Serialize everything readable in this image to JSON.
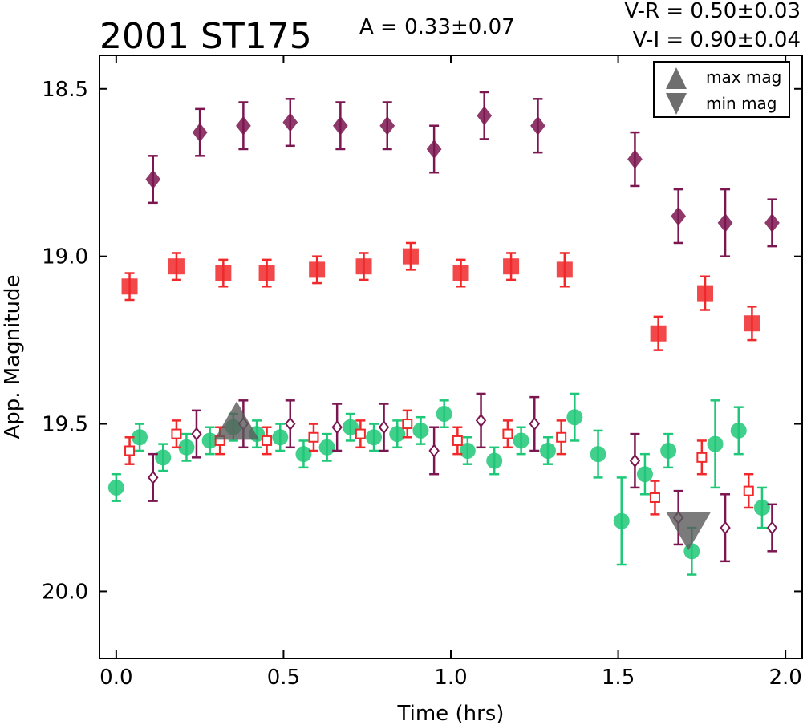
{
  "header": {
    "title": "2001 ST175",
    "amplitude": "A  = 0.33±0.07",
    "color_vr": "V-R = 0.50±0.03",
    "color_vi": "V-I  = 0.90±0.04"
  },
  "chart_data": {
    "type": "scatter",
    "title": "2001 ST175",
    "xlabel": "Time (hrs)",
    "ylabel": "App. Magnitude",
    "xlim": [
      -0.05,
      2.05
    ],
    "ylim": [
      20.2,
      18.4
    ],
    "y_inverted": true,
    "grid": false,
    "xticks": [
      0.0,
      0.5,
      1.0,
      1.5,
      2.0
    ],
    "xtick_labels": [
      "0.0",
      "0.5",
      "1.0",
      "1.5",
      "2.0"
    ],
    "yticks": [
      18.5,
      19.0,
      19.5,
      20.0
    ],
    "ytick_labels": [
      "18.5",
      "19.0",
      "19.5",
      "20.0"
    ],
    "legend": {
      "position": "top-right",
      "entries": [
        {
          "label": "max mag",
          "marker": "triangle-up"
        },
        {
          "label": "min mag",
          "marker": "triangle-down"
        }
      ]
    },
    "series": [
      {
        "marker": "diamond-filled",
        "color": "#7b1650",
        "points": [
          {
            "x": 0.11,
            "y": 18.77,
            "err": 0.07
          },
          {
            "x": 0.25,
            "y": 18.63,
            "err": 0.07
          },
          {
            "x": 0.38,
            "y": 18.61,
            "err": 0.07
          },
          {
            "x": 0.52,
            "y": 18.6,
            "err": 0.07
          },
          {
            "x": 0.67,
            "y": 18.61,
            "err": 0.07
          },
          {
            "x": 0.81,
            "y": 18.61,
            "err": 0.07
          },
          {
            "x": 0.95,
            "y": 18.68,
            "err": 0.07
          },
          {
            "x": 1.1,
            "y": 18.58,
            "err": 0.07
          },
          {
            "x": 1.26,
            "y": 18.61,
            "err": 0.08
          },
          {
            "x": 1.55,
            "y": 18.71,
            "err": 0.08
          },
          {
            "x": 1.68,
            "y": 18.88,
            "err": 0.08
          },
          {
            "x": 1.82,
            "y": 18.9,
            "err": 0.1
          },
          {
            "x": 1.96,
            "y": 18.9,
            "err": 0.07
          }
        ]
      },
      {
        "marker": "square-filled",
        "color": "#f0282a",
        "points": [
          {
            "x": 0.04,
            "y": 19.09,
            "err": 0.04
          },
          {
            "x": 0.18,
            "y": 19.03,
            "err": 0.04
          },
          {
            "x": 0.32,
            "y": 19.05,
            "err": 0.04
          },
          {
            "x": 0.45,
            "y": 19.05,
            "err": 0.04
          },
          {
            "x": 0.6,
            "y": 19.04,
            "err": 0.04
          },
          {
            "x": 0.74,
            "y": 19.03,
            "err": 0.04
          },
          {
            "x": 0.88,
            "y": 19.0,
            "err": 0.04
          },
          {
            "x": 1.03,
            "y": 19.05,
            "err": 0.04
          },
          {
            "x": 1.18,
            "y": 19.03,
            "err": 0.04
          },
          {
            "x": 1.34,
            "y": 19.04,
            "err": 0.05
          },
          {
            "x": 1.62,
            "y": 19.23,
            "err": 0.05
          },
          {
            "x": 1.76,
            "y": 19.11,
            "err": 0.05
          },
          {
            "x": 1.9,
            "y": 19.2,
            "err": 0.05
          }
        ]
      },
      {
        "marker": "circle-filled",
        "color": "#1ec878",
        "points": [
          {
            "x": 0.0,
            "y": 19.69,
            "err": 0.04
          },
          {
            "x": 0.07,
            "y": 19.54,
            "err": 0.04
          },
          {
            "x": 0.14,
            "y": 19.6,
            "err": 0.04
          },
          {
            "x": 0.21,
            "y": 19.57,
            "err": 0.04
          },
          {
            "x": 0.28,
            "y": 19.55,
            "err": 0.04
          },
          {
            "x": 0.35,
            "y": 19.51,
            "err": 0.04
          },
          {
            "x": 0.42,
            "y": 19.53,
            "err": 0.04
          },
          {
            "x": 0.49,
            "y": 19.54,
            "err": 0.04
          },
          {
            "x": 0.56,
            "y": 19.59,
            "err": 0.04
          },
          {
            "x": 0.63,
            "y": 19.57,
            "err": 0.04
          },
          {
            "x": 0.7,
            "y": 19.51,
            "err": 0.04
          },
          {
            "x": 0.77,
            "y": 19.54,
            "err": 0.04
          },
          {
            "x": 0.84,
            "y": 19.53,
            "err": 0.04
          },
          {
            "x": 0.91,
            "y": 19.52,
            "err": 0.04
          },
          {
            "x": 0.98,
            "y": 19.47,
            "err": 0.04
          },
          {
            "x": 1.05,
            "y": 19.58,
            "err": 0.04
          },
          {
            "x": 1.13,
            "y": 19.61,
            "err": 0.04
          },
          {
            "x": 1.21,
            "y": 19.55,
            "err": 0.04
          },
          {
            "x": 1.29,
            "y": 19.58,
            "err": 0.04
          },
          {
            "x": 1.37,
            "y": 19.48,
            "err": 0.07
          },
          {
            "x": 1.44,
            "y": 19.59,
            "err": 0.07
          },
          {
            "x": 1.51,
            "y": 19.79,
            "err": 0.13
          },
          {
            "x": 1.58,
            "y": 19.65,
            "err": 0.06
          },
          {
            "x": 1.65,
            "y": 19.58,
            "err": 0.05
          },
          {
            "x": 1.72,
            "y": 19.88,
            "err": 0.07
          },
          {
            "x": 1.79,
            "y": 19.56,
            "err": 0.13
          },
          {
            "x": 1.86,
            "y": 19.52,
            "err": 0.07
          },
          {
            "x": 1.93,
            "y": 19.75,
            "err": 0.06
          }
        ]
      },
      {
        "marker": "square-open",
        "color": "#f0282a",
        "points": [
          {
            "x": 0.04,
            "y": 19.58,
            "err": 0.04
          },
          {
            "x": 0.18,
            "y": 19.53,
            "err": 0.04
          },
          {
            "x": 0.31,
            "y": 19.55,
            "err": 0.04
          },
          {
            "x": 0.45,
            "y": 19.55,
            "err": 0.04
          },
          {
            "x": 0.59,
            "y": 19.54,
            "err": 0.04
          },
          {
            "x": 0.73,
            "y": 19.53,
            "err": 0.04
          },
          {
            "x": 0.87,
            "y": 19.5,
            "err": 0.04
          },
          {
            "x": 1.02,
            "y": 19.55,
            "err": 0.04
          },
          {
            "x": 1.17,
            "y": 19.53,
            "err": 0.04
          },
          {
            "x": 1.33,
            "y": 19.54,
            "err": 0.05
          },
          {
            "x": 1.61,
            "y": 19.72,
            "err": 0.05
          },
          {
            "x": 1.75,
            "y": 19.6,
            "err": 0.05
          },
          {
            "x": 1.89,
            "y": 19.7,
            "err": 0.05
          }
        ]
      },
      {
        "marker": "diamond-open",
        "color": "#7b1650",
        "points": [
          {
            "x": 0.11,
            "y": 19.66,
            "err": 0.07
          },
          {
            "x": 0.24,
            "y": 19.53,
            "err": 0.07
          },
          {
            "x": 0.38,
            "y": 19.5,
            "err": 0.07
          },
          {
            "x": 0.52,
            "y": 19.5,
            "err": 0.07
          },
          {
            "x": 0.66,
            "y": 19.51,
            "err": 0.07
          },
          {
            "x": 0.8,
            "y": 19.51,
            "err": 0.07
          },
          {
            "x": 0.95,
            "y": 19.58,
            "err": 0.07
          },
          {
            "x": 1.09,
            "y": 19.49,
            "err": 0.08
          },
          {
            "x": 1.25,
            "y": 19.5,
            "err": 0.08
          },
          {
            "x": 1.55,
            "y": 19.61,
            "err": 0.08
          },
          {
            "x": 1.68,
            "y": 19.78,
            "err": 0.08
          },
          {
            "x": 1.82,
            "y": 19.81,
            "err": 0.1
          },
          {
            "x": 1.96,
            "y": 19.81,
            "err": 0.07
          }
        ]
      }
    ],
    "annotations": [
      {
        "type": "max mag",
        "marker": "triangle-up",
        "x": 0.36,
        "y": 19.49
      },
      {
        "type": "min mag",
        "marker": "triangle-down",
        "x": 1.71,
        "y": 19.82
      }
    ]
  }
}
